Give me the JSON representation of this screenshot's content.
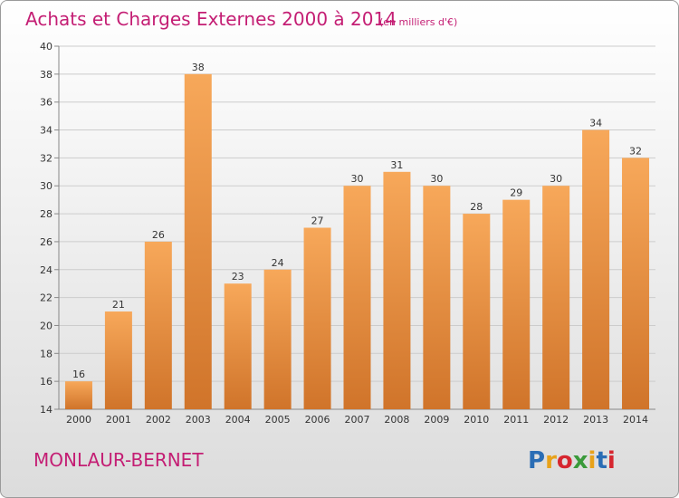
{
  "title": "Achats et Charges Externes 2000 à 2014",
  "unit": "(en milliers d'€)",
  "commune": "MONLAUR-BERNET",
  "logo": {
    "text": "Proxiti",
    "colors": [
      "#2a6db5",
      "#e8a21a",
      "#d6262f",
      "#3a9a3a",
      "#e8a21a",
      "#2a6db5",
      "#d6262f"
    ]
  },
  "colors": {
    "bar_light": "#f6a455",
    "bar_dark": "#d3772a",
    "title": "#c41e74"
  },
  "chart_data": {
    "type": "bar",
    "title": "Achats et Charges Externes 2000 à 2014",
    "categories": [
      "2000",
      "2001",
      "2002",
      "2003",
      "2004",
      "2005",
      "2006",
      "2007",
      "2008",
      "2009",
      "2010",
      "2011",
      "2012",
      "2013",
      "2014"
    ],
    "values": [
      16,
      21,
      26,
      38,
      23,
      24,
      27,
      30,
      31,
      30,
      28,
      29,
      30,
      34,
      32
    ],
    "ylim": [
      14,
      40
    ],
    "yticks": [
      14,
      16,
      18,
      20,
      22,
      24,
      26,
      28,
      30,
      32,
      34,
      36,
      38,
      40
    ],
    "grid": true,
    "legend": "none"
  }
}
